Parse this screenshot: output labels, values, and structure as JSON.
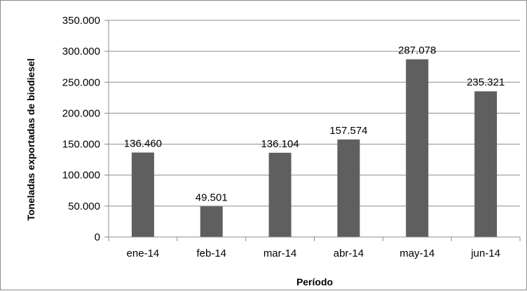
{
  "chart_data": {
    "type": "bar",
    "title": "",
    "xlabel": "Período",
    "ylabel": "Toneladas exportadas de biodiesel",
    "categories": [
      "ene-14",
      "feb-14",
      "mar-14",
      "abr-14",
      "may-14",
      "jun-14"
    ],
    "values": [
      136460,
      49501,
      136104,
      157574,
      287078,
      235321
    ],
    "value_labels": [
      "136.460",
      "49.501",
      "136.104",
      "157.574",
      "287.078",
      "235.321"
    ],
    "ylim": [
      0,
      350000
    ],
    "yticks": [
      0,
      50000,
      100000,
      150000,
      200000,
      250000,
      300000,
      350000
    ],
    "ytick_labels": [
      "0",
      "50.000",
      "100.000",
      "150.000",
      "200.000",
      "250.000",
      "300.000",
      "350.000"
    ],
    "grid": true,
    "legend": "none",
    "bar_color": "#5f5f5f",
    "grid_color": "#8c8c8c"
  }
}
